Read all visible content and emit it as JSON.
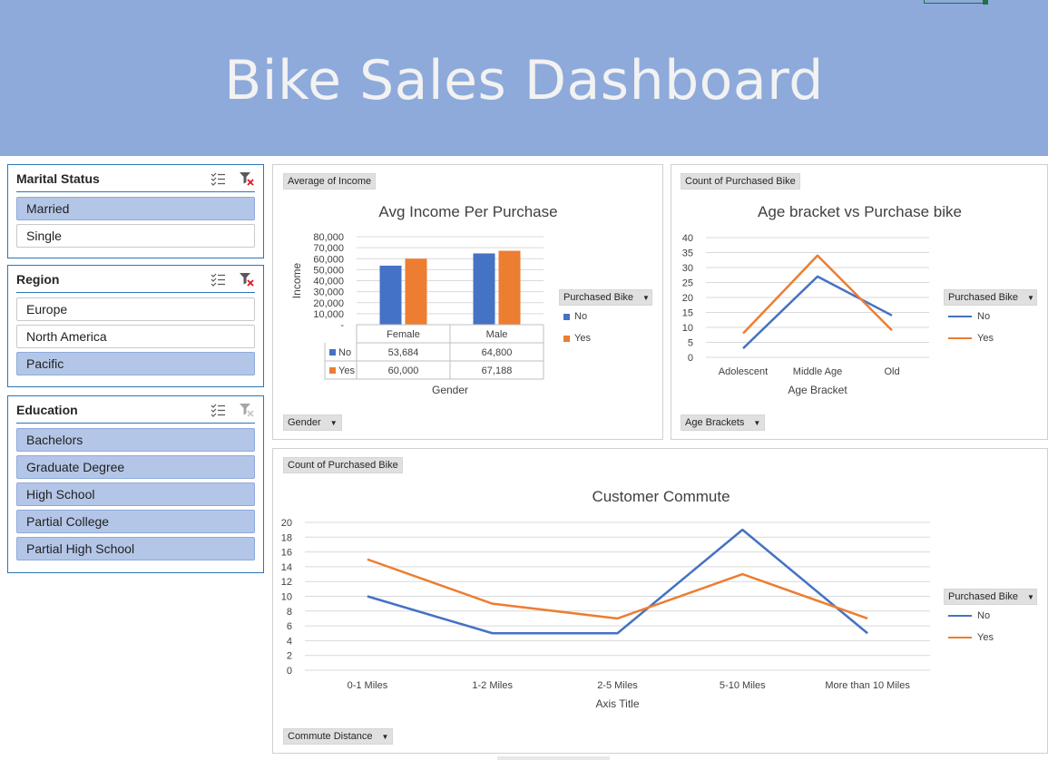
{
  "dashboard": {
    "title": "Bike Sales Dashboard"
  },
  "colors": {
    "header_bg": "#8eaadb",
    "series_no": "#4472c4",
    "series_yes": "#ed7d31",
    "slicer_selected": "#b4c6e7",
    "slicer_border": "#2e75b6"
  },
  "slicers": {
    "marital": {
      "title": "Marital Status",
      "items": [
        {
          "label": "Married",
          "selected": true
        },
        {
          "label": "Single",
          "selected": false
        }
      ]
    },
    "region": {
      "title": "Region",
      "items": [
        {
          "label": "Europe",
          "selected": false
        },
        {
          "label": "North America",
          "selected": false
        },
        {
          "label": "Pacific",
          "selected": true
        }
      ]
    },
    "education": {
      "title": "Education",
      "items": [
        {
          "label": "Bachelors",
          "selected": true
        },
        {
          "label": "Graduate Degree",
          "selected": true
        },
        {
          "label": "High School",
          "selected": true
        },
        {
          "label": "Partial College",
          "selected": true
        },
        {
          "label": "Partial High School",
          "selected": true
        }
      ]
    },
    "icons": {
      "multi_select": "multi-select-icon",
      "clear_filter": "clear-filter-icon"
    }
  },
  "income_chart": {
    "value_button": "Average of Income",
    "axis_button": "Gender",
    "legend_button": "Purchased Bike",
    "legend": [
      "No",
      "Yes"
    ]
  },
  "age_chart": {
    "value_button": "Count of Purchased Bike",
    "axis_button": "Age Brackets",
    "legend_button": "Purchased Bike",
    "legend": [
      "No",
      "Yes"
    ]
  },
  "commute_chart": {
    "value_button": "Count of Purchased Bike",
    "axis_button": "Commute Distance",
    "legend_button": "Purchased Bike",
    "legend": [
      "No",
      "Yes"
    ]
  },
  "chart_data": [
    {
      "type": "bar",
      "title": "Avg Income Per Purchase",
      "xlabel": "Gender",
      "ylabel": "Income",
      "categories": [
        "Female",
        "Male"
      ],
      "ylim": [
        0,
        80000
      ],
      "yticks": [
        "-",
        "10,000",
        "20,000",
        "30,000",
        "40,000",
        "50,000",
        "60,000",
        "70,000",
        "80,000"
      ],
      "series": [
        {
          "name": "No",
          "values": [
            53684,
            64800
          ],
          "labels": [
            "53,684",
            "64,800"
          ]
        },
        {
          "name": "Yes",
          "values": [
            60000,
            67188
          ],
          "labels": [
            "60,000",
            "67,188"
          ]
        }
      ]
    },
    {
      "type": "line",
      "title": "Age bracket vs Purchase bike",
      "xlabel": "Age Bracket",
      "ylabel": "",
      "categories": [
        "Adolescent",
        "Middle Age",
        "Old"
      ],
      "ylim": [
        0,
        40
      ],
      "yticks": [
        "0",
        "5",
        "10",
        "15",
        "20",
        "25",
        "30",
        "35",
        "40"
      ],
      "series": [
        {
          "name": "No",
          "values": [
            3,
            27,
            14
          ]
        },
        {
          "name": "Yes",
          "values": [
            8,
            34,
            9
          ]
        }
      ]
    },
    {
      "type": "line",
      "title": "Customer Commute",
      "xlabel": "Axis Title",
      "ylabel": "",
      "categories": [
        "0-1 Miles",
        "1-2 Miles",
        "2-5 Miles",
        "5-10 Miles",
        "More than 10 Miles"
      ],
      "ylim": [
        0,
        20
      ],
      "yticks": [
        "0",
        "2",
        "4",
        "6",
        "8",
        "10",
        "12",
        "14",
        "16",
        "18",
        "20"
      ],
      "series": [
        {
          "name": "No",
          "values": [
            10,
            5,
            5,
            19,
            5
          ]
        },
        {
          "name": "Yes",
          "values": [
            15,
            9,
            7,
            13,
            7
          ]
        }
      ]
    }
  ]
}
